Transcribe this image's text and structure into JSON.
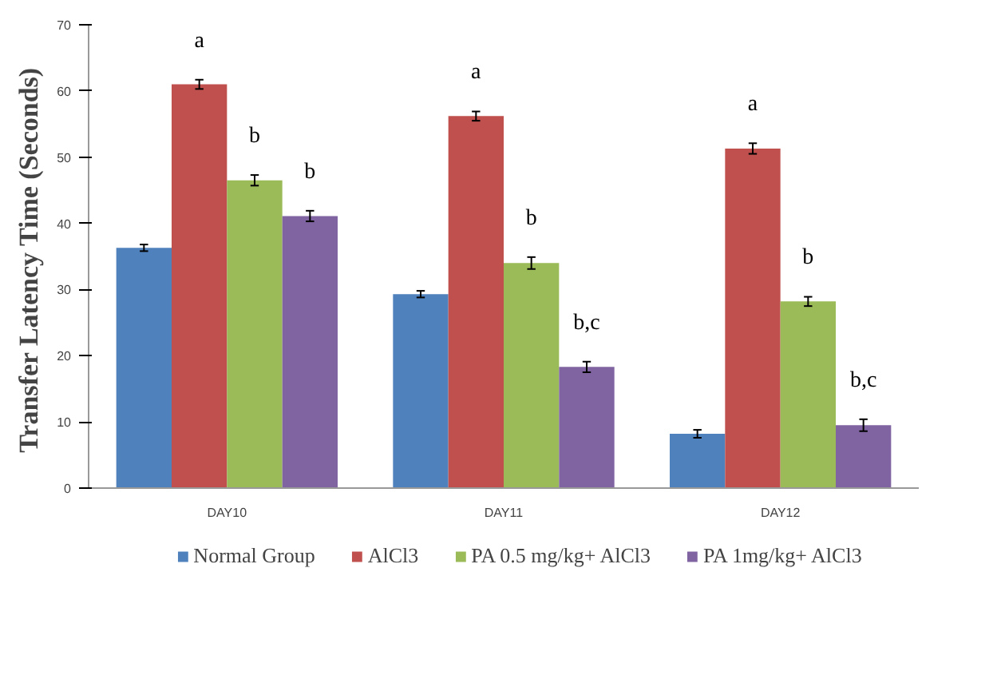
{
  "chart_data": {
    "type": "bar",
    "ylabel": "Transfer Latency Time  (Seconds)",
    "categories": [
      "DAY10",
      "DAY11",
      "DAY12"
    ],
    "ylim": [
      0,
      70
    ],
    "yticks": [
      0,
      10,
      20,
      30,
      40,
      50,
      60,
      70
    ],
    "grid": false,
    "legend": "bottom",
    "series": [
      {
        "name": "Normal Group",
        "color": "#4f81bd",
        "values": [
          36.3,
          29.3,
          8.2
        ],
        "errors": [
          0.5,
          0.5,
          0.6
        ]
      },
      {
        "name": "AlCl3",
        "color": "#c0504d",
        "values": [
          61.0,
          56.2,
          51.3
        ],
        "errors": [
          0.7,
          0.7,
          0.8
        ],
        "value_labels": [
          "a",
          "a",
          "a"
        ]
      },
      {
        "name": "PA 0.5 mg/kg+ AlCl3",
        "color": "#9bbb59",
        "values": [
          46.5,
          34.0,
          28.2
        ],
        "errors": [
          0.8,
          0.9,
          0.7
        ],
        "value_labels": [
          "b",
          "b",
          "b"
        ]
      },
      {
        "name": "PA 1mg/kg+ AlCl3",
        "color": "#8064a2",
        "values": [
          41.1,
          18.3,
          9.5
        ],
        "errors": [
          0.8,
          0.8,
          0.9
        ],
        "value_labels": [
          "b",
          "b,c",
          "b,c"
        ]
      }
    ]
  }
}
